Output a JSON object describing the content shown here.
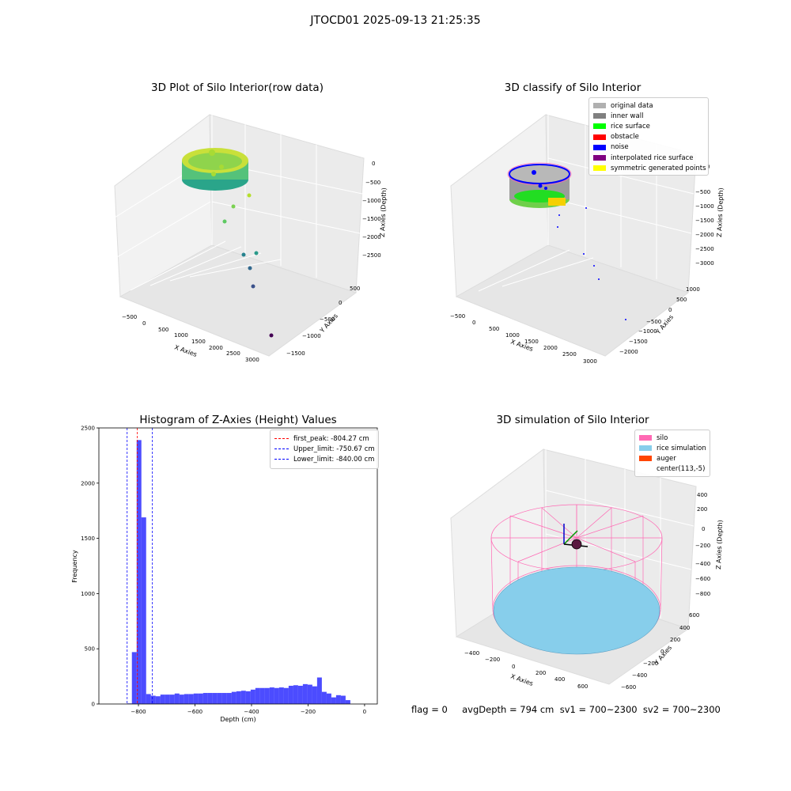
{
  "figure": {
    "suptitle": "JTOCD01 2025-09-13 21:25:35",
    "footer": "flag = 0     avgDepth = 794 cm  sv1 = 700~2300  sv2 = 700~2300"
  },
  "panels": {
    "raw": {
      "title": "3D Plot of Silo Interior(row data)",
      "xlabel": "X Axies",
      "ylabel": "Y Axies",
      "zlabel": "Z Axies (Depth)",
      "xticks": [
        "−500",
        "0",
        "500",
        "1000",
        "1500",
        "2000",
        "2500",
        "3000"
      ],
      "yticks": [
        "500",
        "0",
        "−500",
        "−1000",
        "−1500"
      ],
      "zticks": [
        "0",
        "−500",
        "−1000",
        "−1500",
        "−2000",
        "−2500"
      ]
    },
    "classify": {
      "title": "3D classify of Silo Interior",
      "xlabel": "X Axies",
      "ylabel": "Y Axies",
      "zlabel": "Z Axies (Depth)",
      "xticks": [
        "−500",
        "0",
        "500",
        "1000",
        "1500",
        "2000",
        "2500",
        "3000"
      ],
      "yticks": [
        "1000",
        "500",
        "0",
        "−500",
        "−1000",
        "−1500",
        "−2000"
      ],
      "zticks": [
        "0",
        "−500",
        "−1000",
        "−1500",
        "−2000",
        "−2500",
        "−3000"
      ],
      "legend": [
        {
          "label": "original data",
          "color": "#b0b0b0"
        },
        {
          "label": "inner wall",
          "color": "#808080"
        },
        {
          "label": "rice surface",
          "color": "#00ff00"
        },
        {
          "label": "obstacle",
          "color": "#ff0000"
        },
        {
          "label": "noise",
          "color": "#0000ff"
        },
        {
          "label": "interpolated rice surface",
          "color": "#800080"
        },
        {
          "label": "symmetric generated points",
          "color": "#ffff00"
        }
      ]
    },
    "simulation": {
      "title": "3D simulation of Silo Interior",
      "xlabel": "X Axies",
      "ylabel": "Y Axies",
      "zlabel": "Z Axies (Depth)",
      "xticks": [
        "−400",
        "−200",
        "0",
        "200",
        "400",
        "600"
      ],
      "yticks": [
        "600",
        "400",
        "200",
        "0",
        "−200",
        "−400",
        "−600"
      ],
      "zticks": [
        "400",
        "200",
        "0",
        "−200",
        "−400",
        "−600",
        "−800"
      ],
      "legend": [
        {
          "label": "silo",
          "color": "#ff69b4"
        },
        {
          "label": "rice simulation",
          "color": "#87ceeb"
        },
        {
          "label": "auger",
          "color": "#ff4500"
        },
        {
          "label": "center(113,-5)",
          "color": ""
        }
      ]
    }
  },
  "chart_data": [
    {
      "type": "bar",
      "title": "Histogram of Z-Axies (Height) Values",
      "xlabel": "Depth (cm)",
      "ylabel": "Frequency",
      "xlim": [
        -940,
        45
      ],
      "ylim": [
        0,
        2500
      ],
      "xticks": [
        -800,
        -600,
        -400,
        -200,
        0
      ],
      "xtick_labels": [
        "−800",
        "−600",
        "−400",
        "−200",
        "0"
      ],
      "yticks": [
        0,
        500,
        1000,
        1500,
        2000,
        2500
      ],
      "bar_color": "#0000ff",
      "bin_width": 16.8,
      "bin_edges_start": -840,
      "values": [
        5,
        470,
        2390,
        1690,
        90,
        75,
        70,
        85,
        85,
        85,
        95,
        85,
        90,
        90,
        95,
        95,
        100,
        100,
        100,
        100,
        100,
        100,
        110,
        115,
        120,
        115,
        130,
        145,
        145,
        145,
        150,
        145,
        150,
        145,
        165,
        170,
        165,
        180,
        175,
        160,
        240,
        110,
        95,
        60,
        80,
        75,
        35
      ],
      "reference_lines": [
        {
          "label": "first_peak: -804.27 cm",
          "x": -804.27,
          "color": "#ff0000"
        },
        {
          "label": "Upper_limit: -750.67 cm",
          "x": -750.67,
          "color": "#0000ff"
        },
        {
          "label": "Lower_limit: -840.00 cm",
          "x": -840.0,
          "color": "#0000ff"
        }
      ],
      "legend_position": "top-right"
    }
  ]
}
